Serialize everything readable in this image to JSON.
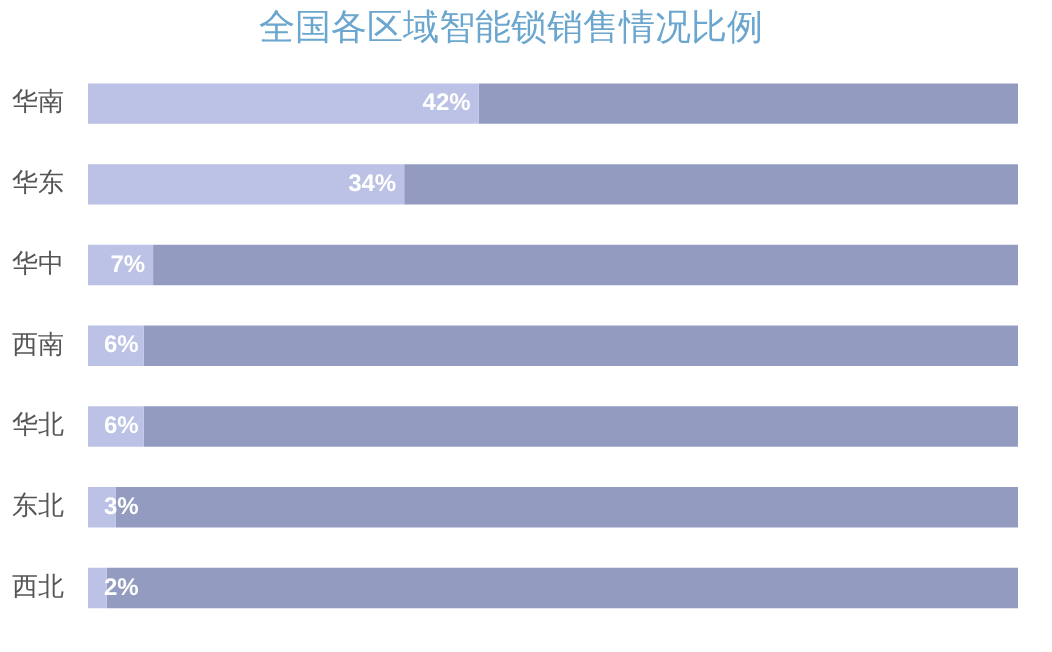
{
  "chart_data": {
    "type": "bar",
    "orientation": "horizontal",
    "stacked": true,
    "title": "全国各区域智能锁销售情况比例",
    "categories": [
      "华南",
      "华东",
      "华中",
      "西南",
      "华北",
      "东北",
      "西北"
    ],
    "xlim": [
      0,
      100
    ],
    "tick_labels": "y",
    "series": [
      {
        "color": "#bcc2e6",
        "values": [
          42,
          34,
          7,
          6,
          6,
          3,
          2
        ],
        "value_labels": [
          "42%",
          "34%",
          "7%",
          "6%",
          "6%",
          "3%",
          "2%"
        ]
      },
      {
        "color": "#939cc0",
        "values": [
          58,
          66,
          93,
          94,
          94,
          97,
          98
        ]
      }
    ]
  }
}
